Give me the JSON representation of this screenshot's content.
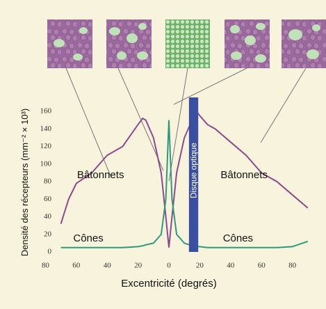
{
  "chart_data": {
    "type": "line",
    "x_label": "Excentricité (degrés)",
    "y_label": "Densité des récepteurs (mm⁻² × 10³)",
    "x": [
      -70,
      -65,
      -60,
      -50,
      -40,
      -30,
      -20,
      -17,
      -15,
      -10,
      -5,
      -2,
      0,
      2,
      5,
      10,
      15,
      18,
      20,
      25,
      30,
      40,
      50,
      60,
      70,
      80,
      90
    ],
    "series": [
      {
        "name": "Bâtonnets",
        "color": "#8a4a8e",
        "values": [
          32,
          60,
          78,
          90,
          110,
          120,
          145,
          152,
          150,
          130,
          90,
          40,
          5,
          40,
          90,
          130,
          150,
          160,
          155,
          145,
          140,
          125,
          110,
          90,
          80,
          65,
          50
        ]
      },
      {
        "name": "Cônes",
        "color": "#2f9a7a",
        "values": [
          5,
          5,
          5,
          5,
          5,
          5,
          6,
          7,
          8,
          10,
          20,
          60,
          150,
          60,
          20,
          10,
          7,
          6,
          6,
          5,
          5,
          5,
          5,
          5,
          5,
          6,
          12
        ]
      }
    ],
    "optic_disc": {
      "label": "Disque optique",
      "range": [
        13,
        19
      ]
    },
    "xlim": [
      -80,
      95
    ],
    "ylim": [
      0,
      170
    ],
    "xticks": [
      {
        "value": -80,
        "label": "80"
      },
      {
        "value": -60,
        "label": "60"
      },
      {
        "value": -40,
        "label": "40"
      },
      {
        "value": -20,
        "label": "20"
      },
      0,
      20,
      40,
      60,
      80
    ],
    "yticks": [
      0,
      20,
      40,
      60,
      80,
      100,
      120,
      140,
      160
    ]
  }
}
